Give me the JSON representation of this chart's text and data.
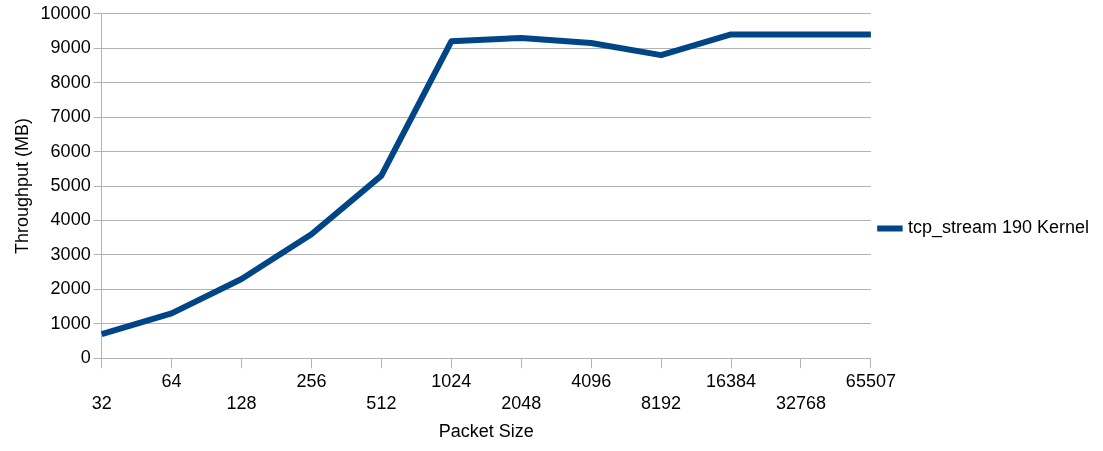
{
  "chart_data": {
    "type": "line",
    "xlabel": "Packet Size",
    "ylabel": "Throughput (MB)",
    "categories": [
      "32",
      "64",
      "128",
      "256",
      "512",
      "1024",
      "2048",
      "4096",
      "8192",
      "16384",
      "32768",
      "65507"
    ],
    "series": [
      {
        "name": "tcp_stream 190 Kernel",
        "color": "#004586",
        "values": [
          700,
          1300,
          2300,
          3600,
          5300,
          9200,
          9300,
          9150,
          8800,
          9400,
          9400,
          9400
        ]
      }
    ],
    "ylim": [
      0,
      10000
    ],
    "yticks": [
      0,
      1000,
      2000,
      3000,
      4000,
      5000,
      6000,
      7000,
      8000,
      9000,
      10000
    ],
    "grid": "y",
    "legend": "right",
    "marker": "none",
    "line_style": "solid"
  }
}
